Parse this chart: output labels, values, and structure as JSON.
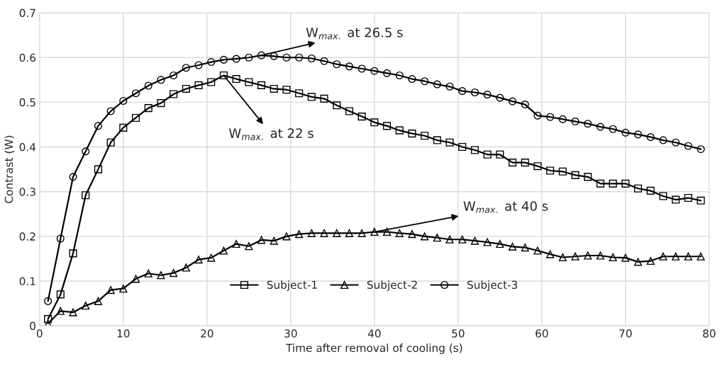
{
  "chart_data": {
    "type": "line",
    "xlabel": "Time after removal of cooling (s)",
    "ylabel": "Contrast (W)",
    "x": [
      1,
      2.5,
      4,
      5.5,
      7,
      8.5,
      10,
      11.5,
      13,
      14.5,
      16,
      17.5,
      19,
      20.5,
      22,
      23.5,
      25,
      26.5,
      28,
      29.5,
      31,
      32.5,
      34,
      35.5,
      37,
      38.5,
      40,
      41.5,
      43,
      44.5,
      46,
      47.5,
      49,
      50.5,
      52,
      53.5,
      55,
      56.5,
      58,
      59.5,
      61,
      62.5,
      64,
      65.5,
      67,
      68.5,
      70,
      71.5,
      73,
      74.5,
      76,
      77.5,
      79
    ],
    "xlim": [
      0,
      80
    ],
    "xticks": [
      0,
      10,
      20,
      30,
      40,
      50,
      60,
      70,
      80
    ],
    "ylim": [
      0,
      0.7
    ],
    "yticks": [
      0,
      0.1,
      0.2,
      0.3,
      0.4,
      0.5,
      0.6,
      0.7
    ],
    "grid": true,
    "legend": "bottom",
    "line_style": "solid",
    "series": [
      {
        "name": "Subject-1",
        "color": "#000000",
        "marker": "square",
        "values": [
          0.015,
          0.07,
          0.162,
          0.292,
          0.35,
          0.41,
          0.443,
          0.465,
          0.487,
          0.498,
          0.518,
          0.53,
          0.538,
          0.545,
          0.56,
          0.552,
          0.545,
          0.538,
          0.53,
          0.528,
          0.52,
          0.512,
          0.508,
          0.493,
          0.48,
          0.468,
          0.455,
          0.447,
          0.437,
          0.43,
          0.425,
          0.415,
          0.41,
          0.4,
          0.393,
          0.383,
          0.383,
          0.365,
          0.365,
          0.357,
          0.347,
          0.345,
          0.337,
          0.333,
          0.318,
          0.318,
          0.318,
          0.307,
          0.302,
          0.29,
          0.282,
          0.286,
          0.28
        ]
      },
      {
        "name": "Subject-2",
        "color": "#000000",
        "marker": "triangle",
        "values": [
          0.005,
          0.033,
          0.03,
          0.045,
          0.055,
          0.08,
          0.083,
          0.105,
          0.117,
          0.113,
          0.118,
          0.13,
          0.148,
          0.152,
          0.168,
          0.183,
          0.178,
          0.192,
          0.19,
          0.2,
          0.205,
          0.207,
          0.207,
          0.207,
          0.207,
          0.207,
          0.21,
          0.21,
          0.207,
          0.205,
          0.2,
          0.197,
          0.193,
          0.193,
          0.19,
          0.187,
          0.183,
          0.177,
          0.175,
          0.168,
          0.16,
          0.153,
          0.155,
          0.157,
          0.157,
          0.153,
          0.152,
          0.143,
          0.145,
          0.155,
          0.155,
          0.155,
          0.155
        ]
      },
      {
        "name": "Subject-3",
        "color": "#000000",
        "marker": "circle",
        "values": [
          0.055,
          0.195,
          0.333,
          0.39,
          0.447,
          0.48,
          0.503,
          0.52,
          0.537,
          0.55,
          0.56,
          0.577,
          0.583,
          0.59,
          0.595,
          0.597,
          0.6,
          0.605,
          0.603,
          0.6,
          0.6,
          0.598,
          0.592,
          0.585,
          0.58,
          0.575,
          0.57,
          0.565,
          0.56,
          0.552,
          0.547,
          0.54,
          0.535,
          0.525,
          0.522,
          0.517,
          0.51,
          0.502,
          0.495,
          0.47,
          0.467,
          0.462,
          0.457,
          0.452,
          0.445,
          0.44,
          0.432,
          0.428,
          0.422,
          0.415,
          0.41,
          0.402,
          0.395
        ]
      }
    ],
    "annotations": [
      {
        "text": "W$_{max.}$ at 26.5 s",
        "x": 26.5,
        "y": 0.605
      },
      {
        "text": "W$_{max.}$ at 22 s",
        "x": 22,
        "y": 0.56
      },
      {
        "text": "W$_{max.}$ at 40 s",
        "x": 40,
        "y": 0.21
      }
    ]
  }
}
